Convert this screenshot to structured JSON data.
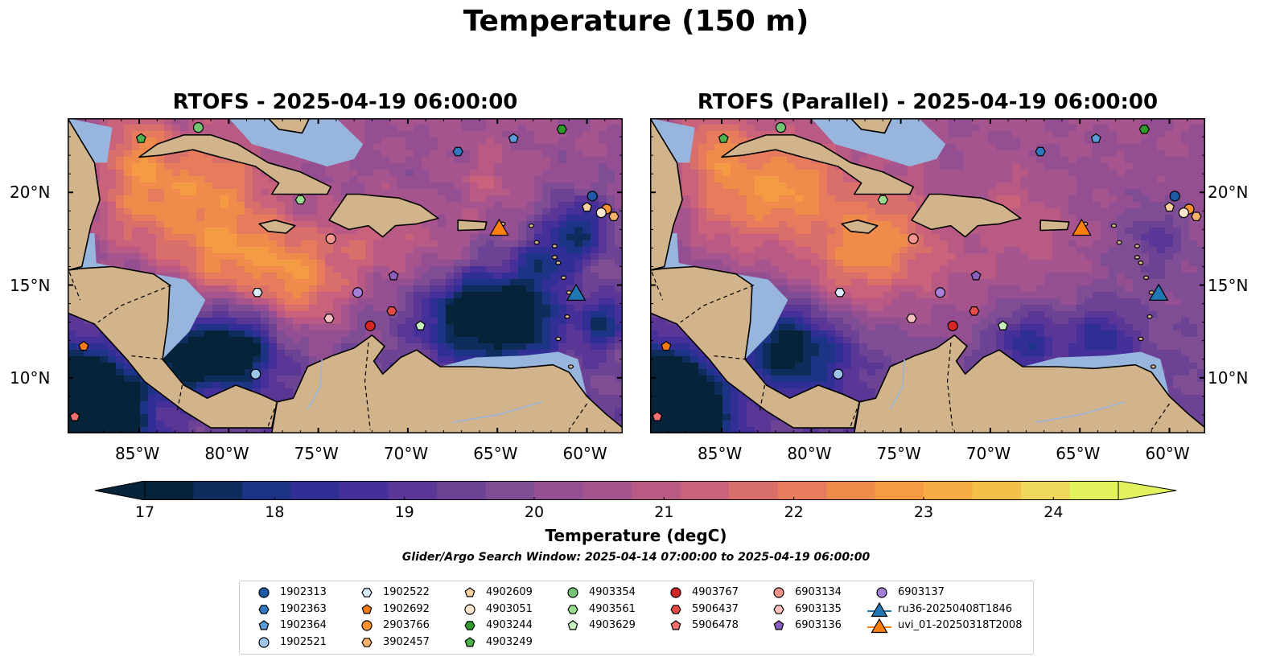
{
  "title": "Temperature (150 m)",
  "panels": [
    {
      "id": "rtofs",
      "title": "RTOFS - 2025-04-19 06:00:00",
      "variant": "operational"
    },
    {
      "id": "rtofs_parallel",
      "title": "RTOFS (Parallel) - 2025-04-19 06:00:00",
      "variant": "parallel"
    }
  ],
  "axes": {
    "lon_ticks": [
      "85°W",
      "80°W",
      "75°W",
      "70°W",
      "65°W",
      "60°W"
    ],
    "lat_ticks": [
      "20°N",
      "15°N",
      "10°N"
    ],
    "lon_range": [
      -89,
      -58
    ],
    "lat_range": [
      7,
      24
    ]
  },
  "colorbar": {
    "label": "Temperature (degC)",
    "min": 17,
    "max": 24.5,
    "step": 0.5,
    "ticks": [
      "17",
      "18",
      "19",
      "20",
      "21",
      "22",
      "23",
      "24"
    ],
    "tick_values": [
      17,
      18,
      19,
      20,
      21,
      22,
      23,
      24
    ],
    "extend": "both",
    "colors": [
      "#07233a",
      "#0e2d5c",
      "#1d3385",
      "#312f95",
      "#45309a",
      "#5a3796",
      "#6c4394",
      "#7e4d93",
      "#934f91",
      "#a6548d",
      "#b85a84",
      "#c9627a",
      "#d86f6b",
      "#e67c5b",
      "#ef8c4c",
      "#f49b44",
      "#f6ac42",
      "#f4c04a",
      "#eed75a",
      "#e2f25c"
    ]
  },
  "search_window": "Glider/Argo Search Window: 2025-04-14 07:00:00 to 2025-04-19 06:00:00",
  "colors": {
    "ocean_shelf": "#98b5de",
    "land": "#d2b48c",
    "deep": "#07233a"
  },
  "platforms": [
    {
      "id": "1902313",
      "marker": "circle",
      "color": "#1f5aa6",
      "lon": -59.7,
      "lat": 19.8
    },
    {
      "id": "1902363",
      "marker": "hexagon",
      "color": "#2f79bf",
      "lon": -67.2,
      "lat": 22.2
    },
    {
      "id": "1902364",
      "marker": "pentagon",
      "color": "#5b9bd5",
      "lon": -64.1,
      "lat": 22.9
    },
    {
      "id": "1902521",
      "marker": "circle",
      "color": "#9dc5ea",
      "lon": -78.5,
      "lat": 10.2
    },
    {
      "id": "1902522",
      "marker": "hexagon",
      "color": "#d7ebf9",
      "lon": -78.4,
      "lat": 14.6
    },
    {
      "id": "1902692",
      "marker": "pentagon",
      "color": "#f57a14",
      "lon": -88.1,
      "lat": 11.7
    },
    {
      "id": "2903766",
      "marker": "circle",
      "color": "#f7922d",
      "lon": -58.9,
      "lat": 19.1
    },
    {
      "id": "3902457",
      "marker": "hexagon",
      "color": "#f6b26b",
      "lon": -58.5,
      "lat": 18.7
    },
    {
      "id": "4902609",
      "marker": "pentagon",
      "color": "#fbd0a1",
      "lon": -60.0,
      "lat": 19.2
    },
    {
      "id": "4903051",
      "marker": "circle",
      "color": "#fde7cf",
      "lon": -59.2,
      "lat": 18.9
    },
    {
      "id": "4903244",
      "marker": "hexagon",
      "color": "#2e9a2e",
      "lon": -61.4,
      "lat": 23.4
    },
    {
      "id": "4903249",
      "marker": "pentagon",
      "color": "#4db24d",
      "lon": -84.9,
      "lat": 22.9
    },
    {
      "id": "4903354",
      "marker": "circle",
      "color": "#74c476",
      "lon": -81.7,
      "lat": 23.5
    },
    {
      "id": "4903561",
      "marker": "hexagon",
      "color": "#9bdb8f",
      "lon": -76.0,
      "lat": 19.6
    },
    {
      "id": "4903629",
      "marker": "pentagon",
      "color": "#c7f0bd",
      "lon": -69.3,
      "lat": 12.8
    },
    {
      "id": "4903767",
      "marker": "circle",
      "color": "#d62728",
      "lon": -72.1,
      "lat": 12.8
    },
    {
      "id": "5906437",
      "marker": "hexagon",
      "color": "#e34a4a",
      "lon": -70.9,
      "lat": 13.6
    },
    {
      "id": "5906478",
      "marker": "pentagon",
      "color": "#f07070",
      "lon": -88.6,
      "lat": 7.9
    },
    {
      "id": "6903134",
      "marker": "circle",
      "color": "#f4948f",
      "lon": -74.3,
      "lat": 17.5
    },
    {
      "id": "6903135",
      "marker": "hexagon",
      "color": "#f9c0c0",
      "lon": -74.4,
      "lat": 13.2
    },
    {
      "id": "6903136",
      "marker": "pentagon",
      "color": "#8a5fc0",
      "lon": -70.8,
      "lat": 15.5
    },
    {
      "id": "6903137",
      "marker": "circle",
      "color": "#a77fd8",
      "lon": -72.8,
      "lat": 14.6
    },
    {
      "id": "ru36-20250408T1846",
      "marker": "triangle",
      "color": "#1f77b4",
      "lon": -60.6,
      "lat": 14.6,
      "glider": true
    },
    {
      "id": "uvi_01-20250318T2008",
      "marker": "triangle",
      "color": "#ff7f0e",
      "lon": -64.9,
      "lat": 18.1,
      "glider": true
    }
  ],
  "legend_columns": [
    [
      "1902313",
      "1902363",
      "1902364",
      "1902521"
    ],
    [
      "1902522",
      "1902692",
      "2903766",
      "3902457"
    ],
    [
      "4902609",
      "4903051",
      "4903244",
      "4903249"
    ],
    [
      "4903354",
      "4903561",
      "4903629"
    ],
    [
      "4903767",
      "5906437",
      "5906478"
    ],
    [
      "6903134",
      "6903135",
      "6903136"
    ],
    [
      "6903137",
      "ru36-20250408T1846",
      "uvi_01-20250318T2008"
    ]
  ]
}
